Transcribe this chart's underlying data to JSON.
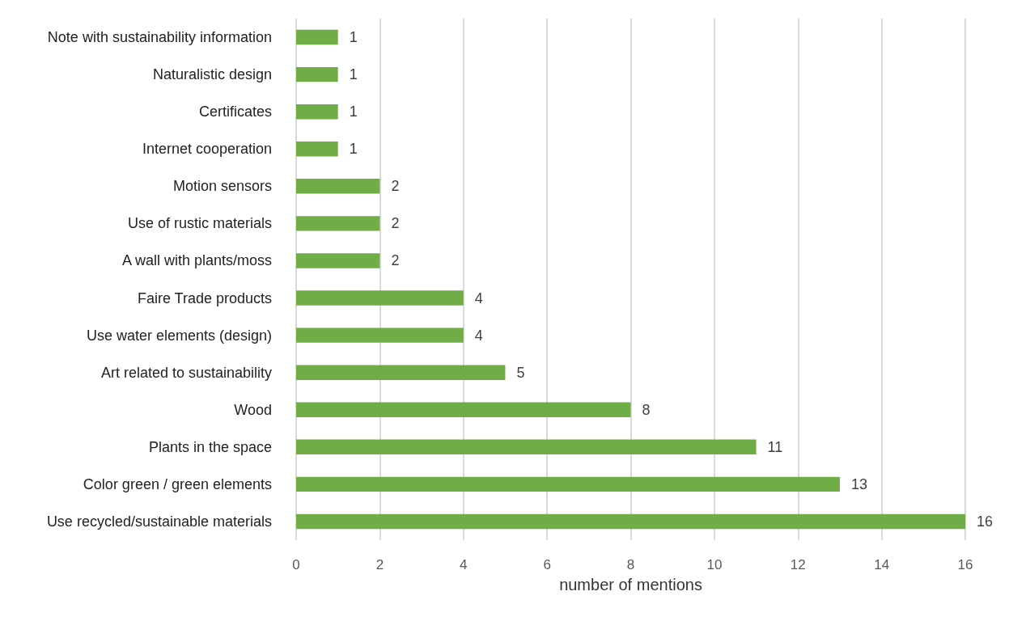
{
  "chart_data": {
    "type": "bar",
    "orientation": "horizontal",
    "xlabel": "number of mentions",
    "categories": [
      "Note with sustainability information",
      "Naturalistic design",
      "Certificates",
      "Internet cooperation",
      "Motion sensors",
      "Use of rustic materials",
      "A wall with plants/moss",
      "Faire Trade products",
      "Use water elements (design)",
      "Art related to sustainability",
      "Wood",
      "Plants in the space",
      "Color green / green elements",
      "Use recycled/sustainable materials"
    ],
    "values": [
      1,
      1,
      1,
      1,
      2,
      2,
      2,
      4,
      4,
      5,
      8,
      11,
      13,
      16
    ],
    "color": "#70ad47",
    "xlim": [
      0,
      16
    ],
    "xticks": [
      0,
      2,
      4,
      6,
      8,
      10,
      12,
      14,
      16
    ],
    "grid": "x",
    "data_labels": true
  }
}
